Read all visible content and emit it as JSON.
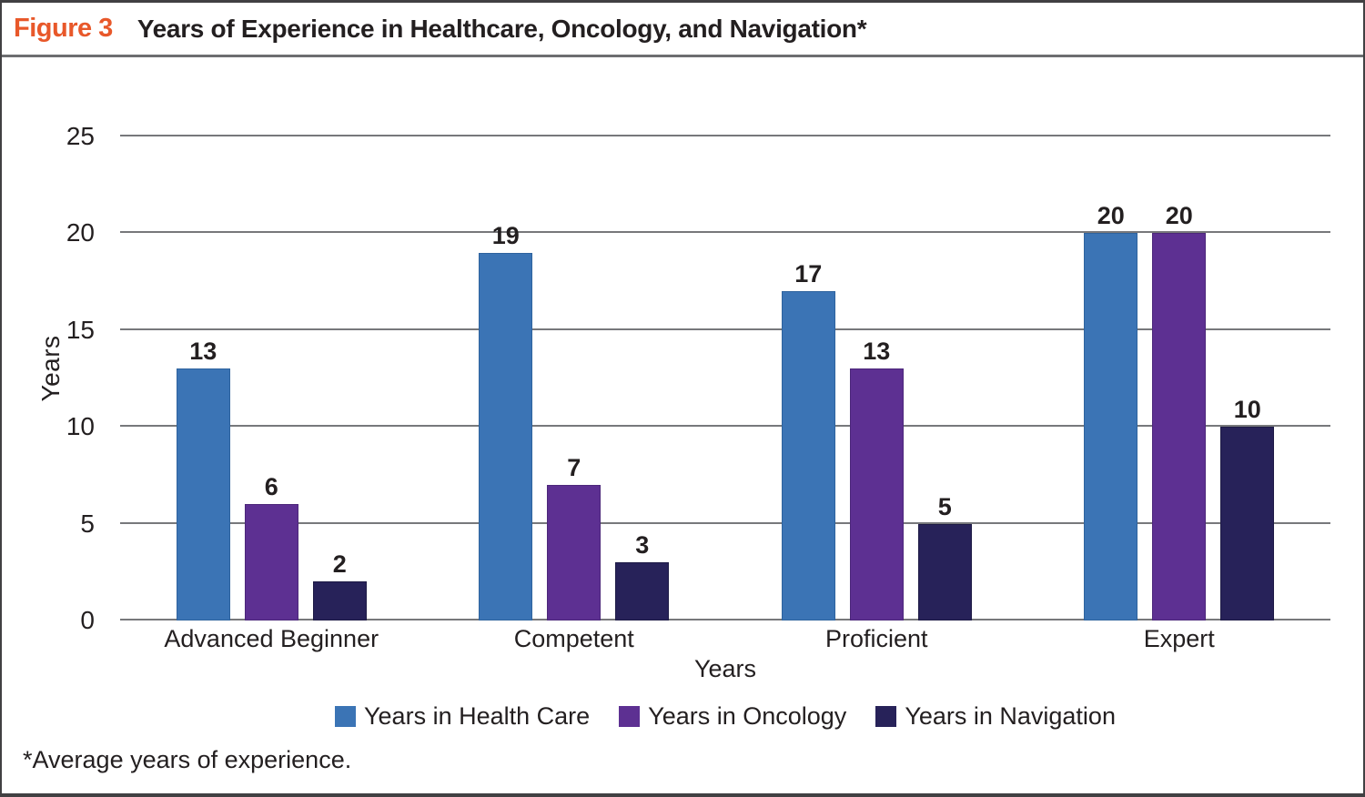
{
  "figure": {
    "label": "Figure 3",
    "label_color": "#E8582A",
    "title": "Years of Experience in Healthcare, Oncology, and Navigation*",
    "footnote": "*Average years of experience."
  },
  "chart_data": {
    "type": "bar",
    "title": "Years of Experience in Healthcare, Oncology, and Navigation*",
    "categories": [
      "Advanced Beginner",
      "Competent",
      "Proficient",
      "Expert"
    ],
    "series": [
      {
        "name": "Years in Health Care",
        "color": "#3B74B5",
        "border_color": "#2E639E",
        "values": [
          13,
          19,
          17,
          20
        ]
      },
      {
        "name": "Years in Oncology",
        "color": "#5D3092",
        "border_color": "#4C277A",
        "values": [
          6,
          7,
          13,
          20
        ]
      },
      {
        "name": "Years in Navigation",
        "color": "#272259",
        "border_color": "#1D1A45",
        "values": [
          2,
          3,
          5,
          10
        ]
      }
    ],
    "xlabel": "Years",
    "ylabel": "Years",
    "ylim": [
      0,
      25
    ],
    "yticks": [
      0,
      5,
      10,
      15,
      20,
      25
    ],
    "grid": true,
    "gridline_color": "#77787B",
    "legend_position": "bottom",
    "text_color": "#231F20"
  }
}
